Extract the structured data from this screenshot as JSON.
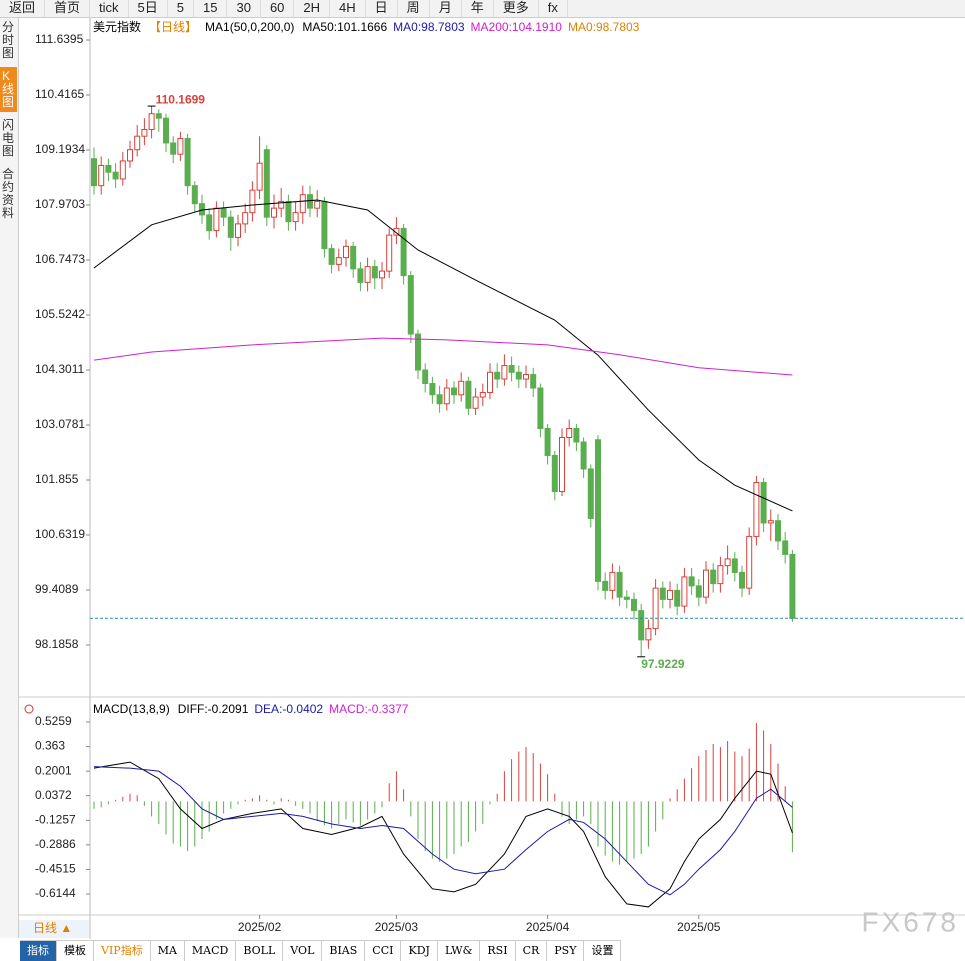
{
  "toolbar": [
    "返回",
    "首页",
    "tick",
    "5日",
    "5",
    "15",
    "30",
    "60",
    "2H",
    "4H",
    "日",
    "周",
    "月",
    "年",
    "更多",
    "fx"
  ],
  "sidebar": [
    "分时图",
    "K线图",
    "闪电图",
    "合约资料"
  ],
  "period": "日线 ▲",
  "tabs": [
    "指标",
    "模板",
    "VIP指标",
    "MA",
    "MACD",
    "BOLL",
    "VOL",
    "BIAS",
    "CCI",
    "KDJ",
    "LW&",
    "RSI",
    "CR",
    "PSY",
    "设置"
  ],
  "watermark": "FX678",
  "chart_data": [
    {
      "type": "candlestick",
      "title": "美元指数",
      "subtitle": "【日线】",
      "indicator": "MA1(50,0,200,0)",
      "header_items": [
        {
          "text": "MA50:101.1666",
          "color": "#000000"
        },
        {
          "text": "MA0:98.7803",
          "color": "#1a1aa8"
        },
        {
          "text": "MA200:104.1910",
          "color": "#d020d0"
        },
        {
          "text": "MA0:98.7803",
          "color": "#e08000"
        }
      ],
      "up_color": "#d9413c",
      "down_color": "#5aae4f",
      "ylim": [
        97.1848,
        112.0843
      ],
      "yticks": [
        111.6395,
        110.4165,
        109.1934,
        107.9703,
        106.7473,
        105.5242,
        104.3011,
        103.0781,
        101.855,
        100.6319,
        99.4089,
        98.1858
      ],
      "open": [
        109.0,
        108.4,
        108.85,
        108.7,
        108.55,
        108.95,
        109.2,
        109.5,
        109.65,
        110.0,
        109.9,
        109.35,
        109.1,
        109.45,
        108.4,
        108.0,
        107.75,
        107.4,
        107.9,
        107.7,
        107.25,
        107.55,
        107.8,
        108.3,
        109.2,
        107.7,
        107.9,
        108.05,
        107.6,
        107.8,
        108.2,
        107.9,
        108.05,
        107.0,
        106.65,
        106.8,
        107.05,
        106.55,
        106.25,
        106.6,
        106.35,
        106.5,
        107.3,
        107.45,
        106.4,
        105.1,
        104.3,
        104.0,
        103.75,
        103.55,
        103.9,
        103.75,
        104.05,
        103.45,
        103.7,
        103.8,
        104.25,
        104.1,
        104.4,
        104.25,
        104.1,
        104.2,
        103.9,
        103.0,
        102.4,
        101.6,
        102.8,
        103.0,
        102.7,
        102.1,
        102.75,
        99.6,
        99.4,
        99.8,
        99.25,
        99.2,
        98.95,
        98.3,
        98.55,
        99.45,
        99.2,
        99.4,
        99.05,
        99.7,
        99.5,
        99.25,
        99.85,
        99.55,
        99.95,
        100.1,
        99.8,
        99.45,
        100.6,
        101.8,
        100.9,
        100.95,
        100.5,
        100.2
      ],
      "high": [
        109.25,
        109.05,
        109.0,
        108.9,
        109.15,
        109.4,
        109.75,
        109.9,
        110.1699,
        110.1,
        110.0,
        109.5,
        109.6,
        109.55,
        108.5,
        108.2,
        107.9,
        108.05,
        108.05,
        107.85,
        107.75,
        108.0,
        108.5,
        109.5,
        109.3,
        108.2,
        108.35,
        108.2,
        108.05,
        108.4,
        108.4,
        108.3,
        108.15,
        107.1,
        107.0,
        107.2,
        107.15,
        106.7,
        106.8,
        106.75,
        106.7,
        107.45,
        107.7,
        107.55,
        106.5,
        105.2,
        104.45,
        104.15,
        103.95,
        104.1,
        104.05,
        104.25,
        104.15,
        103.9,
        104.0,
        104.45,
        104.45,
        104.65,
        104.6,
        104.4,
        104.4,
        104.35,
        104.0,
        103.1,
        102.5,
        103.0,
        103.2,
        103.1,
        102.8,
        102.2,
        102.85,
        99.8,
        100.0,
        99.95,
        99.4,
        99.35,
        99.1,
        98.75,
        99.65,
        99.6,
        99.6,
        99.55,
        99.9,
        99.9,
        99.65,
        100.05,
        100.0,
        100.15,
        100.4,
        100.25,
        99.95,
        100.8,
        101.95,
        101.9,
        101.2,
        101.1,
        100.7,
        100.3
      ],
      "low": [
        108.2,
        108.2,
        108.5,
        108.35,
        108.4,
        108.8,
        109.05,
        109.3,
        109.45,
        109.6,
        109.15,
        108.9,
        108.95,
        108.2,
        107.8,
        107.55,
        107.2,
        107.25,
        107.5,
        106.95,
        107.05,
        107.35,
        107.6,
        108.1,
        107.5,
        107.45,
        107.7,
        107.4,
        107.4,
        107.55,
        107.7,
        107.7,
        106.8,
        106.45,
        106.5,
        106.6,
        106.35,
        106.05,
        106.05,
        106.1,
        106.1,
        106.35,
        107.1,
        106.2,
        104.9,
        104.1,
        103.8,
        103.55,
        103.35,
        103.4,
        103.55,
        103.6,
        103.3,
        103.3,
        103.5,
        103.65,
        103.9,
        103.95,
        104.05,
        103.9,
        103.9,
        103.7,
        102.8,
        102.2,
        101.4,
        101.5,
        102.6,
        102.5,
        101.9,
        100.8,
        99.4,
        99.2,
        99.2,
        99.05,
        99.0,
        98.75,
        97.9229,
        98.1,
        98.4,
        99.0,
        99.0,
        98.85,
        98.9,
        99.3,
        99.05,
        99.1,
        99.35,
        99.35,
        99.75,
        99.6,
        99.25,
        99.3,
        100.4,
        100.7,
        100.5,
        100.3,
        100.0,
        98.7
      ],
      "close": [
        108.4,
        108.85,
        108.7,
        108.55,
        108.95,
        109.2,
        109.5,
        109.65,
        110.0,
        109.9,
        109.35,
        109.1,
        109.45,
        108.4,
        108.0,
        107.75,
        107.4,
        107.9,
        107.7,
        107.25,
        107.55,
        107.8,
        108.3,
        108.9,
        107.7,
        107.9,
        108.05,
        107.6,
        107.8,
        108.2,
        107.9,
        108.05,
        107.0,
        106.65,
        106.8,
        107.05,
        106.55,
        106.25,
        106.6,
        106.35,
        106.5,
        107.3,
        107.45,
        106.4,
        105.1,
        104.3,
        104.0,
        103.75,
        103.55,
        103.9,
        103.75,
        104.05,
        103.45,
        103.7,
        103.8,
        104.25,
        104.1,
        104.4,
        104.25,
        104.1,
        104.2,
        103.9,
        103.0,
        102.4,
        101.6,
        102.8,
        103.0,
        102.7,
        102.1,
        101.0,
        99.6,
        99.4,
        99.8,
        99.25,
        99.2,
        98.95,
        98.3,
        98.55,
        99.45,
        99.2,
        99.4,
        99.05,
        99.7,
        99.5,
        99.25,
        99.85,
        99.55,
        99.95,
        100.1,
        99.8,
        99.45,
        100.6,
        101.8,
        100.9,
        100.95,
        100.5,
        100.2,
        98.78
      ],
      "series": [
        {
          "color": "#000000",
          "x": [
            0,
            8,
            15,
            22,
            31,
            38,
            45,
            53,
            64,
            70,
            77,
            84,
            89,
            97
          ],
          "values": [
            106.57,
            107.53,
            107.86,
            107.97,
            108.08,
            107.86,
            106.97,
            106.3,
            105.41,
            104.63,
            103.41,
            102.3,
            101.74,
            101.1666
          ]
        },
        {
          "color": "#d020d0",
          "x": [
            0,
            8,
            22,
            40,
            49,
            63,
            73,
            84,
            97
          ],
          "values": [
            104.52,
            104.7,
            104.86,
            105.01,
            104.97,
            104.86,
            104.64,
            104.35,
            104.191
          ]
        }
      ]
    },
    {
      "type": "macd",
      "title": "MACD(13,8,9)",
      "header_items": [
        {
          "text": "DIFF:-0.2091",
          "color": "#000000"
        },
        {
          "text": "DEA:-0.0402",
          "color": "#1a1aa8"
        },
        {
          "text": "MACD:-0.3377",
          "color": "#d020d0"
        }
      ],
      "ylim": [
        -0.7536,
        0.6718
      ],
      "yticks": [
        0.5259,
        0.363,
        0.2001,
        0.0372,
        -0.1257,
        -0.2886,
        -0.4515,
        -0.6144
      ],
      "xticks": [
        {
          "value": 23,
          "label": "2025/02"
        },
        {
          "value": 42,
          "label": "2025/03"
        },
        {
          "value": 63,
          "label": "2025/04"
        },
        {
          "value": 84,
          "label": "2025/05"
        }
      ],
      "up_color": "#d9413c",
      "down_color": "#5aae4f",
      "values": [
        -0.05,
        -0.04,
        -0.02,
        0.01,
        0.03,
        0.05,
        0.04,
        -0.03,
        -0.1,
        -0.15,
        -0.22,
        -0.28,
        -0.3,
        -0.33,
        -0.3,
        -0.25,
        -0.2,
        -0.12,
        -0.08,
        -0.05,
        -0.02,
        0.01,
        0.02,
        0.04,
        0.01,
        -0.02,
        0.02,
        0.01,
        -0.03,
        -0.05,
        -0.08,
        -0.13,
        -0.16,
        -0.18,
        -0.15,
        -0.12,
        -0.14,
        -0.16,
        -0.12,
        -0.08,
        -0.04,
        0.12,
        0.2,
        0.08,
        -0.1,
        -0.25,
        -0.33,
        -0.38,
        -0.4,
        -0.38,
        -0.35,
        -0.3,
        -0.27,
        -0.2,
        -0.15,
        -0.02,
        0.05,
        0.2,
        0.28,
        0.33,
        0.36,
        0.32,
        0.25,
        0.18,
        0.05,
        -0.1,
        -0.15,
        -0.12,
        -0.1,
        -0.15,
        -0.3,
        -0.36,
        -0.4,
        -0.42,
        -0.4,
        -0.38,
        -0.35,
        -0.3,
        -0.2,
        -0.12,
        0.02,
        0.08,
        0.15,
        0.22,
        0.3,
        0.34,
        0.38,
        0.36,
        0.4,
        0.33,
        0.3,
        0.35,
        0.52,
        0.47,
        0.38,
        0.25,
        0.1,
        -0.3377
      ],
      "series": [
        {
          "color": "#000000",
          "x": [
            0,
            5,
            9,
            12,
            15,
            18,
            22,
            26,
            29,
            33,
            37,
            40,
            43,
            47,
            50,
            53,
            57,
            60,
            63,
            66,
            68,
            71,
            74,
            77,
            80,
            82,
            84,
            87,
            89,
            92,
            94,
            97
          ],
          "values": [
            0.22,
            0.26,
            0.15,
            -0.05,
            -0.18,
            -0.12,
            -0.08,
            -0.05,
            -0.18,
            -0.22,
            -0.17,
            -0.1,
            -0.35,
            -0.58,
            -0.6,
            -0.55,
            -0.35,
            -0.1,
            -0.05,
            -0.1,
            -0.2,
            -0.5,
            -0.68,
            -0.7,
            -0.58,
            -0.4,
            -0.25,
            -0.12,
            0.02,
            0.2,
            0.18,
            -0.2091
          ]
        },
        {
          "color": "#1a1aa8",
          "x": [
            0,
            5,
            9,
            12,
            15,
            18,
            22,
            26,
            29,
            33,
            37,
            40,
            43,
            47,
            50,
            53,
            57,
            60,
            63,
            66,
            68,
            71,
            74,
            77,
            80,
            82,
            84,
            87,
            89,
            92,
            94,
            97
          ],
          "values": [
            0.23,
            0.22,
            0.2,
            0.1,
            -0.05,
            -0.12,
            -0.1,
            -0.08,
            -0.1,
            -0.15,
            -0.18,
            -0.16,
            -0.18,
            -0.35,
            -0.45,
            -0.48,
            -0.45,
            -0.32,
            -0.2,
            -0.12,
            -0.14,
            -0.25,
            -0.4,
            -0.55,
            -0.62,
            -0.55,
            -0.45,
            -0.32,
            -0.2,
            0.02,
            0.08,
            -0.0402
          ]
        }
      ]
    }
  ]
}
